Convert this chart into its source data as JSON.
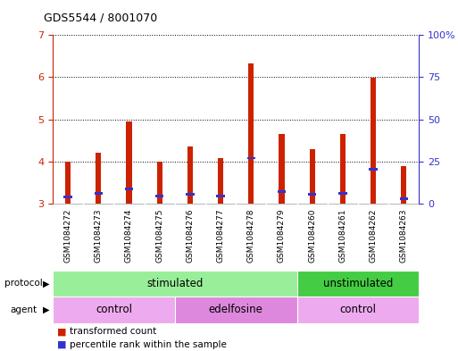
{
  "title": "GDS5544 / 8001070",
  "samples": [
    "GSM1084272",
    "GSM1084273",
    "GSM1084274",
    "GSM1084275",
    "GSM1084276",
    "GSM1084277",
    "GSM1084278",
    "GSM1084279",
    "GSM1084260",
    "GSM1084261",
    "GSM1084262",
    "GSM1084263"
  ],
  "red_values": [
    4.0,
    4.2,
    4.95,
    4.0,
    4.35,
    4.08,
    6.33,
    4.65,
    4.3,
    4.65,
    5.98,
    3.88
  ],
  "blue_values": [
    3.15,
    3.25,
    3.35,
    3.18,
    3.22,
    3.18,
    4.08,
    3.28,
    3.22,
    3.24,
    3.82,
    3.12
  ],
  "bar_bottom": 3.0,
  "ylim_left": [
    3.0,
    7.0
  ],
  "ylim_right": [
    0,
    100
  ],
  "yticks_left": [
    3,
    4,
    5,
    6,
    7
  ],
  "yticks_right": [
    0,
    25,
    50,
    75,
    100
  ],
  "ytick_labels_right": [
    "0",
    "25",
    "50",
    "75",
    "100%"
  ],
  "red_color": "#cc2200",
  "blue_color": "#3333cc",
  "bar_width": 0.18,
  "bg_color": "#ffffff",
  "plot_bg_color": "#ffffff",
  "protocol_labels": [
    {
      "text": "stimulated",
      "start": 0,
      "end": 8,
      "color": "#99ee99"
    },
    {
      "text": "unstimulated",
      "start": 8,
      "end": 12,
      "color": "#44cc44"
    }
  ],
  "agent_labels": [
    {
      "text": "control",
      "start": 0,
      "end": 4,
      "color": "#eeaaee"
    },
    {
      "text": "edelfosine",
      "start": 4,
      "end": 8,
      "color": "#dd88dd"
    },
    {
      "text": "control",
      "start": 8,
      "end": 12,
      "color": "#eeaaee"
    }
  ],
  "legend_red": "transformed count",
  "legend_blue": "percentile rank within the sample",
  "protocol_arrow_label": "protocol",
  "agent_arrow_label": "agent",
  "title_color": "#000000",
  "left_axis_color": "#cc2200",
  "right_axis_color": "#3333cc",
  "sample_bg_color": "#cccccc",
  "label_fontsize": 7,
  "row_fontsize": 8
}
